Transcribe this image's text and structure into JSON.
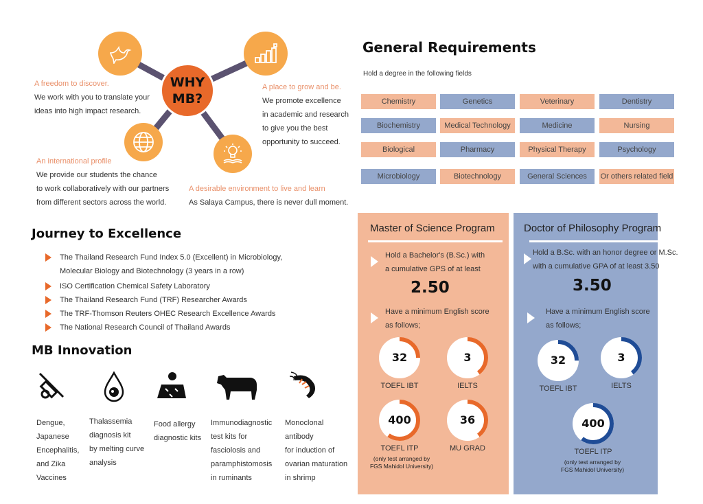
{
  "why": {
    "center": "WHY MB?",
    "items": [
      {
        "icon": "dove-icon",
        "title": "A freedom to discover.",
        "lines": [
          "We work with you to translate your",
          "ideas into high impact research."
        ]
      },
      {
        "icon": "growth-chart-icon",
        "title": "A place to grow and be.",
        "lines": [
          "We promote excellence",
          "in academic and research",
          "to give you the best",
          "opportunity to succeed."
        ]
      },
      {
        "icon": "globe-icon",
        "title": "An international profile",
        "lines": [
          "We provide our students the chance",
          "to work collaboratively with our partners",
          "from different sectors across the world."
        ]
      },
      {
        "icon": "lightbulb-book-icon",
        "title": "A desirable environment to live and learn",
        "lines": [
          "As Salaya Campus, there is never dull moment."
        ]
      }
    ]
  },
  "general": {
    "title": "General Requirements",
    "subtitle": "Hold a degree in the following fields",
    "fields": [
      {
        "label": "Chemistry",
        "color": "salmon"
      },
      {
        "label": "Genetics",
        "color": "blue"
      },
      {
        "label": "Veterinary",
        "color": "salmon"
      },
      {
        "label": "Dentistry",
        "color": "blue"
      },
      {
        "label": "Biochemistry",
        "color": "blue"
      },
      {
        "label": "Medical Technology",
        "color": "salmon"
      },
      {
        "label": "Medicine",
        "color": "blue"
      },
      {
        "label": "Nursing",
        "color": "salmon"
      },
      {
        "label": "Biological",
        "color": "salmon"
      },
      {
        "label": "Pharmacy",
        "color": "blue"
      },
      {
        "label": "Physical Therapy",
        "color": "salmon"
      },
      {
        "label": "Psychology",
        "color": "blue"
      },
      {
        "label": "Microbiology",
        "color": "blue"
      },
      {
        "label": "Biotechnology",
        "color": "salmon"
      },
      {
        "label": "General Sciences",
        "color": "blue"
      },
      {
        "label": "Or others related field",
        "color": "salmon"
      }
    ]
  },
  "journey": {
    "title": "Journey to Excellence",
    "items": [
      [
        "The Thailand Research Fund Index 5.0 (Excellent) in Microbiology,",
        "Molecular Biology and Biotechnology (3 years in a row)"
      ],
      [
        "ISO Certification Chemical Safety Laboratory"
      ],
      [
        "The Thailand Research Fund (TRF) Researcher Awards"
      ],
      [
        "The TRF-Thomson Reuters OHEC Research Excellence Awards"
      ],
      [
        "The National Research Council of Thailand Awards"
      ]
    ]
  },
  "innovation": {
    "title": "MB Innovation",
    "items": [
      {
        "icon": "syringe-virus-icon",
        "lines": [
          "Dengue,",
          "Japanese",
          "Encephalitis,",
          "and Zika",
          "Vaccines"
        ]
      },
      {
        "icon": "blood-drop-icon",
        "lines": [
          "Thalassemia",
          "diagnosis kit",
          "by melting curve",
          "analysis"
        ]
      },
      {
        "icon": "allergy-person-icon",
        "lines": [
          "Food allergy",
          "diagnostic kits"
        ]
      },
      {
        "icon": "cow-icon",
        "lines": [
          "Immunodiagnostic",
          "test kits for",
          "fasciolosis and",
          "paramphistomosis",
          "in ruminants"
        ]
      },
      {
        "icon": "shrimp-icon",
        "lines": [
          "Monoclonal",
          "antibody",
          "for induction of",
          "ovarian maturation",
          "in shrimp"
        ]
      }
    ]
  },
  "master": {
    "title": "Master of Science Program",
    "req1": [
      "Hold a Bachelor's (B.Sc.) with",
      "a cumulative GPS of at least"
    ],
    "gpa": "2.50",
    "req2": [
      "Have a minimum English score",
      "as follows;"
    ],
    "scores": [
      {
        "value": "32",
        "label": "TOEFL IBT",
        "fill": 0.25
      },
      {
        "value": "3",
        "label": "IELTS",
        "fill": 0.4
      },
      {
        "value": "400",
        "label": "TOEFL ITP",
        "fill": 0.6
      },
      {
        "value": "36",
        "label": "MU GRAD",
        "fill": 0.4
      }
    ],
    "note": [
      "(only test arranged by",
      "FGS Mahidol University)"
    ],
    "accent": "#e8692a"
  },
  "doctor": {
    "title": "Doctor of Philosophy Program",
    "req1": [
      "Hold a B.Sc. with an honor degree or M.Sc.",
      "with a cumulative GPA of at least 3.50"
    ],
    "gpa": "3.50",
    "req2": [
      "Have a minimum English score",
      "as follows;"
    ],
    "scores": [
      {
        "value": "32",
        "label": "TOEFL IBT",
        "fill": 0.25
      },
      {
        "value": "3",
        "label": "IELTS",
        "fill": 0.4
      },
      {
        "value": "400",
        "label": "TOEFL ITP",
        "fill": 0.6
      }
    ],
    "note": [
      "(only test arranged by",
      "FGS Mahidol University)"
    ],
    "accent": "#1f4c96"
  },
  "colors": {
    "orange": "#e8692a",
    "lightOrange": "#f6a84b",
    "salmon": "#f3b898",
    "blue": "#94a8cc",
    "connector": "#5b5270"
  }
}
